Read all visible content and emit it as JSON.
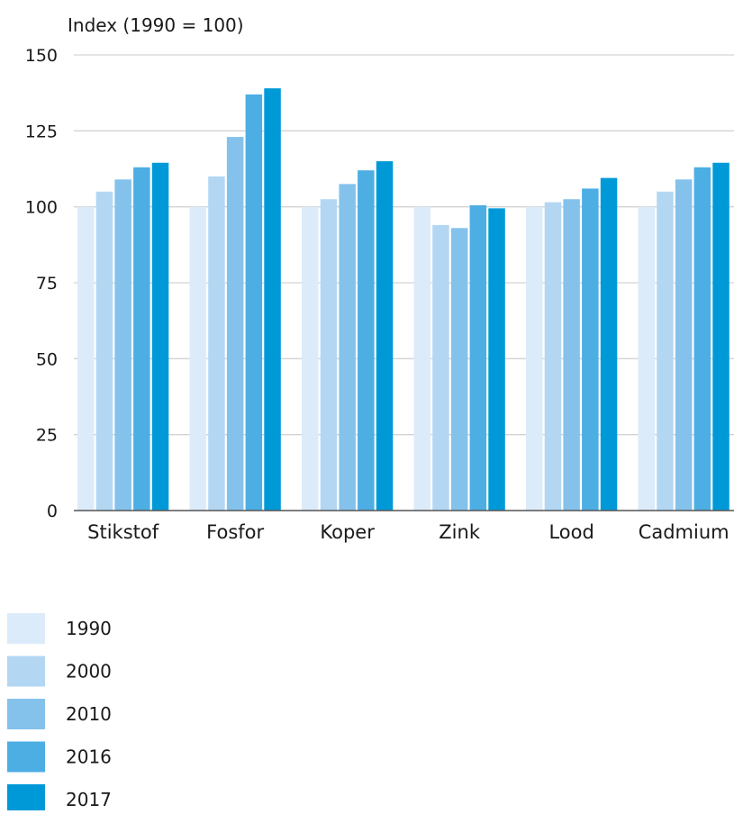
{
  "chart_data": {
    "type": "bar",
    "title": "",
    "ylabel": "Index (1990 = 100)",
    "xlabel": "",
    "ylim": [
      0,
      150
    ],
    "yticks": [
      0,
      25,
      50,
      75,
      100,
      125,
      150
    ],
    "grid": true,
    "legend_position": "bottom-left",
    "categories": [
      "Stikstof",
      "Fosfor",
      "Koper",
      "Zink",
      "Lood",
      "Cadmium"
    ],
    "series": [
      {
        "name": "1990",
        "color": "#dcebf9",
        "values": [
          100,
          100,
          100,
          100,
          100,
          100
        ]
      },
      {
        "name": "2000",
        "color": "#b3d7f3",
        "values": [
          105,
          110,
          102.5,
          94,
          101.5,
          105
        ]
      },
      {
        "name": "2010",
        "color": "#84c2ec",
        "values": [
          109,
          123,
          107.5,
          93,
          102.5,
          109
        ]
      },
      {
        "name": "2016",
        "color": "#4daee4",
        "values": [
          113,
          137,
          112,
          100.5,
          106,
          113
        ]
      },
      {
        "name": "2017",
        "color": "#0099d8",
        "values": [
          114.5,
          139,
          115,
          99.5,
          109.5,
          114.5
        ]
      }
    ]
  },
  "colors": {
    "gridline": "#d3d3d3",
    "axis": "#555555"
  }
}
